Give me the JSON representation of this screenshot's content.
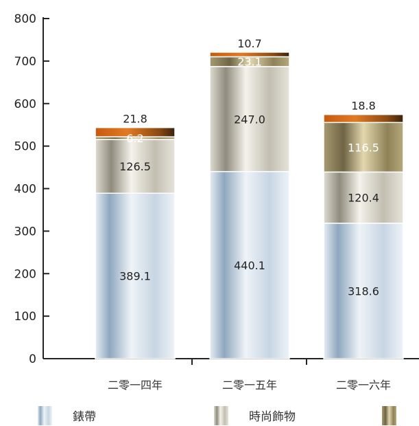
{
  "chart_data": {
    "type": "bar",
    "stacked": true,
    "categories": [
      "二零一四年",
      "二零一五年",
      "二零一六年"
    ],
    "series": [
      {
        "name": "錶帶",
        "values": [
          389.1,
          440.1,
          318.6
        ],
        "color": "#b9cada"
      },
      {
        "name": "時尚飾物",
        "values": [
          126.5,
          247.0,
          120.4
        ],
        "color": "#c8c5b7"
      },
      {
        "name": "",
        "values": [
          6.2,
          23.1,
          116.5
        ],
        "color": "#9b8d62"
      },
      {
        "values": [
          21.8,
          10.7,
          18.8
        ],
        "color": "#d86a14"
      }
    ],
    "value_labels": {
      "series_0": [
        "389.1",
        "440.1",
        "318.6"
      ],
      "series_1": [
        "126.5",
        "247.0",
        "120.4"
      ],
      "series_2": [
        "6.2",
        "23.1",
        "116.5"
      ],
      "series_3": [
        "21.8",
        "10.7",
        "18.8"
      ]
    },
    "ylim": [
      0,
      800
    ],
    "yticks": [
      "0",
      "100",
      "200",
      "300",
      "400",
      "500",
      "600",
      "700",
      "800"
    ],
    "grid": false,
    "legend_position": "bottom"
  }
}
